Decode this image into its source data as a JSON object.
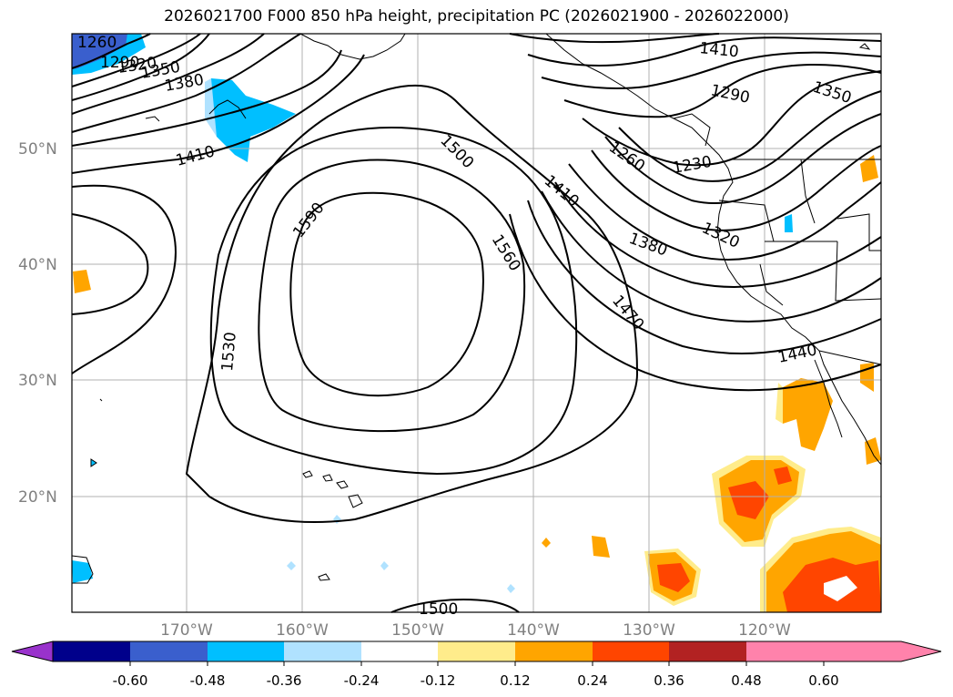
{
  "title": "2026021700 F000 850 hPa height, precipitation PC (2026021900 - 2026022000)",
  "map": {
    "lat_labels": [
      "50°N",
      "40°N",
      "30°N",
      "20°N"
    ],
    "lon_labels": [
      "170°W",
      "160°W",
      "150°W",
      "140°W",
      "130°W",
      "120°W"
    ]
  },
  "contour_labels": [
    {
      "text": "1290"
    },
    {
      "text": "1260"
    },
    {
      "text": "1320"
    },
    {
      "text": "1350"
    },
    {
      "text": "1380"
    },
    {
      "text": "1410"
    },
    {
      "text": "1500"
    },
    {
      "text": "1590"
    },
    {
      "text": "1560"
    },
    {
      "text": "1530"
    },
    {
      "text": "1410"
    },
    {
      "text": "1380"
    },
    {
      "text": "1470"
    },
    {
      "text": "1500"
    },
    {
      "text": "1410"
    },
    {
      "text": "1290"
    },
    {
      "text": "1350"
    },
    {
      "text": "1260"
    },
    {
      "text": "1230"
    },
    {
      "text": "1320"
    },
    {
      "text": "1440"
    }
  ],
  "colorbar": {
    "colors": [
      "#9932cc",
      "#00008b",
      "#3a5fcd",
      "#00bfff",
      "#b0e2ff",
      "#ffffff",
      "#ffec8b",
      "#ffa500",
      "#ff4500",
      "#b22222",
      "#ff82ab"
    ],
    "ticks": [
      "-0.60",
      "-0.48",
      "-0.36",
      "-0.24",
      "-0.12",
      "0.12",
      "0.24",
      "0.36",
      "0.48",
      "0.60"
    ]
  }
}
